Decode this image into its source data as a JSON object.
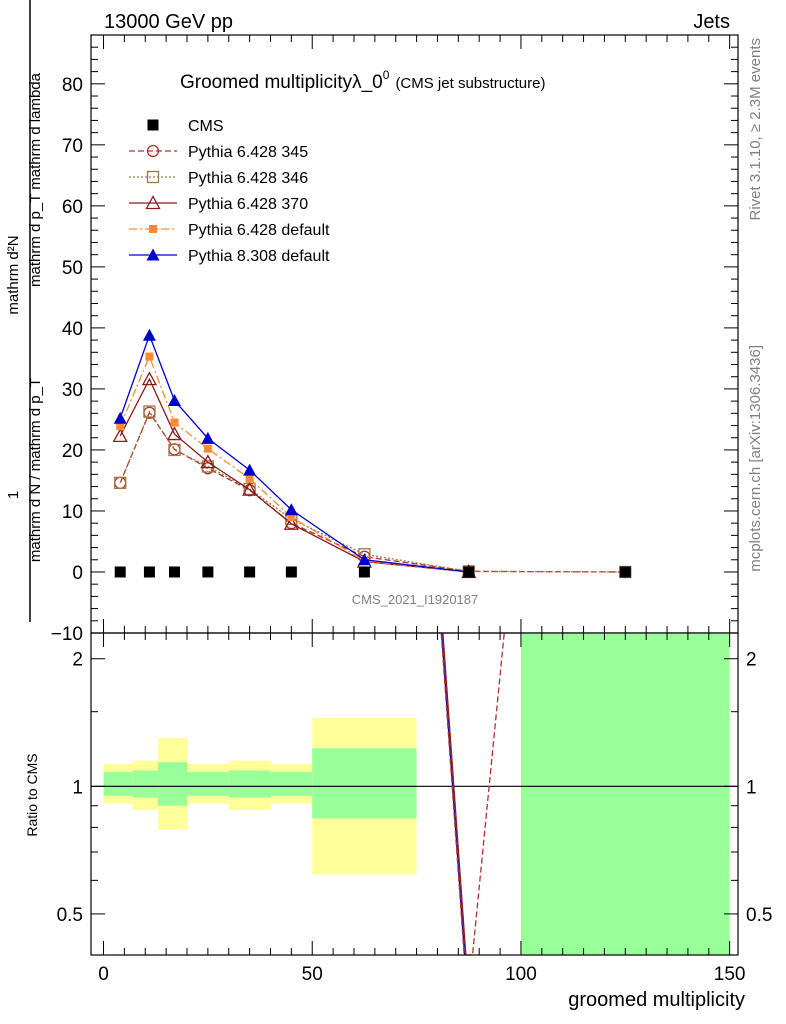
{
  "header": {
    "left": "13000 GeV pp",
    "right": "Jets"
  },
  "side": {
    "rivet": "Rivet 3.1.10, ≥ 2.3M events",
    "mcplots": "mcplots.cern.ch [arXiv:1306.3436]"
  },
  "plot": {
    "title_main": "Groomed multiplicityλ_0",
    "title_sup": "0",
    "title_small": "(CMS jet substructure)",
    "watermark": "CMS_2021_I1920187",
    "ylabel_top": "mathrm d²N",
    "ylabel_one": "1",
    "ylabel_num": "mathrm d p_T mathrm d lambda",
    "ylabel_den": "mathrm d N / mathrm d p_T",
    "ratio_ylabel": "Ratio to CMS",
    "xlabel": "groomed multiplicity"
  },
  "colors": {
    "cms": "#000000",
    "p345": "#b03030",
    "p346": "#a07840",
    "p370": "#8b1a1a",
    "p6def": "#ff8a33",
    "p8def": "#0000cc",
    "band_inner": "#99ff99",
    "band_outer": "#ffff99"
  },
  "chart_data": {
    "type": "line",
    "x": [
      4,
      11,
      17,
      25,
      35,
      45,
      62.5,
      87.5,
      125
    ],
    "xlim": [
      -3,
      152
    ],
    "ylim": [
      -10,
      88
    ],
    "xticks": [
      0,
      50,
      100,
      150
    ],
    "yticks": [
      -10,
      0,
      10,
      20,
      30,
      40,
      50,
      60,
      70,
      80
    ],
    "series": [
      {
        "name": "CMS",
        "values": [
          0,
          0,
          0,
          0,
          0,
          0,
          0,
          0,
          0
        ]
      },
      {
        "name": "Pythia 6.428 345",
        "values": [
          14.6,
          26.1,
          20.1,
          17.0,
          13.4,
          8.0,
          2.5,
          0.1,
          0.0
        ]
      },
      {
        "name": "Pythia 6.428 346",
        "values": [
          14.6,
          26.3,
          20.0,
          17.3,
          13.6,
          8.7,
          2.9,
          0.1,
          0.0
        ]
      },
      {
        "name": "Pythia 6.428 370",
        "values": [
          22.3,
          31.6,
          22.6,
          18.0,
          13.5,
          7.9,
          1.7,
          0.0,
          null
        ]
      },
      {
        "name": "Pythia 6.428 default",
        "values": [
          23.9,
          35.3,
          24.5,
          20.2,
          15.3,
          9.0,
          1.8,
          0.0,
          null
        ]
      },
      {
        "name": "Pythia 8.308 default",
        "values": [
          25.2,
          38.8,
          28.1,
          21.9,
          16.7,
          10.2,
          2.0,
          0.0,
          null
        ]
      }
    ],
    "ratio": {
      "ylim": [
        0.4,
        2.3
      ],
      "yticks": [
        0.5,
        1,
        2
      ],
      "bins": [
        {
          "lo": 0,
          "hi": 7,
          "inner": [
            0.95,
            1.08
          ],
          "outer": [
            0.91,
            1.13
          ]
        },
        {
          "lo": 7,
          "hi": 13,
          "inner": [
            0.94,
            1.09
          ],
          "outer": [
            0.88,
            1.15
          ]
        },
        {
          "lo": 13,
          "hi": 20,
          "inner": [
            0.9,
            1.14
          ],
          "outer": [
            0.79,
            1.3
          ]
        },
        {
          "lo": 20,
          "hi": 30,
          "inner": [
            0.95,
            1.08
          ],
          "outer": [
            0.91,
            1.13
          ]
        },
        {
          "lo": 30,
          "hi": 40,
          "inner": [
            0.94,
            1.09
          ],
          "outer": [
            0.88,
            1.15
          ]
        },
        {
          "lo": 40,
          "hi": 50,
          "inner": [
            0.95,
            1.08
          ],
          "outer": [
            0.91,
            1.13
          ]
        },
        {
          "lo": 50,
          "hi": 75,
          "inner": [
            0.84,
            1.23
          ],
          "outer": [
            0.62,
            1.45
          ]
        },
        {
          "lo": 100,
          "hi": 150,
          "inner": [
            0.4,
            2.3
          ],
          "outer": [
            0.4,
            2.3
          ]
        }
      ],
      "lines": [
        {
          "name": "Pythia 8.308 default",
          "points": [
            [
              81.0,
              2.3
            ],
            [
              86.5,
              0.4
            ]
          ]
        },
        {
          "name": "Pythia 6.428 370",
          "points": [
            [
              81.3,
              2.3
            ],
            [
              86.8,
              0.4
            ]
          ]
        },
        {
          "name": "Pythia 6.428 345",
          "points": [
            [
              80.9,
              2.3
            ],
            [
              86.4,
              0.4
            ],
            [
              88.4,
              0.4
            ],
            [
              96.0,
              2.3
            ]
          ]
        }
      ]
    }
  }
}
